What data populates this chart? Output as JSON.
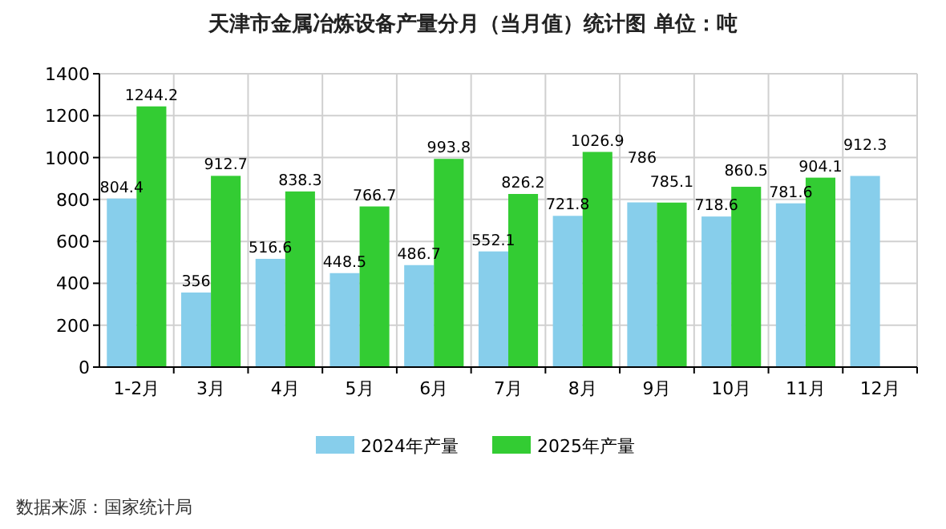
{
  "chart_data": {
    "type": "bar",
    "title": "天津市金属冶炼设备产量分月（当月值）统计图 单位：吨",
    "categories": [
      "1-2月",
      "3月",
      "4月",
      "5月",
      "6月",
      "7月",
      "8月",
      "9月",
      "10月",
      "11月",
      "12月"
    ],
    "series": [
      {
        "name": "2024年产量",
        "color": "#87ceeb",
        "values": [
          804.4,
          356,
          516.6,
          448.5,
          486.7,
          552.1,
          721.8,
          786,
          718.6,
          781.6,
          912.3
        ]
      },
      {
        "name": "2025年产量",
        "color": "#33cc33",
        "values": [
          1244.2,
          912.7,
          838.3,
          766.7,
          993.8,
          826.2,
          1026.9,
          785.1,
          860.5,
          904.1,
          null
        ]
      }
    ],
    "ylim": [
      0,
      1400
    ],
    "yticks": [
      0,
      200,
      400,
      600,
      800,
      1000,
      1200,
      1400
    ],
    "grid": true,
    "legend": "bottom",
    "data_labels": true,
    "annotations": [
      "数据来源：国家统计局"
    ]
  }
}
